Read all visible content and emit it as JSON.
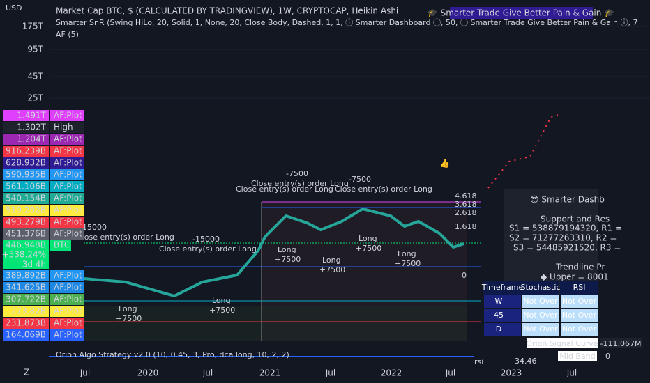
{
  "header": {
    "currency": "USD",
    "title": "Market Cap BTC, $ (CALCULATED BY TRADINGVIEW), 1W, CRYPTOCAP, Heikin Ashi",
    "indicator": "Smarter SnR (Swing HiLo, 20, Solid, 1, None, 20, Close Body, Dashed, 1, 1, ⓘ Smarter Dashboard ⓘ, 50, ⓘ Smarter Trade Give Better Pain & Gain ⓘ, 7",
    "indicator2": "AF (5)",
    "badge": "🎓 Smarter Trade Give Better Pain & Gain 🎓"
  },
  "price_scale": [
    "175T",
    "95T",
    "45T",
    "25T"
  ],
  "left_labels": [
    {
      "value": "1.491T",
      "tag": "AF:Plot",
      "color": "#e040fb"
    },
    {
      "value": "1.302T",
      "tag": "High",
      "color": "#1e222d"
    },
    {
      "value": "1.204T",
      "tag": "AF:Plot",
      "color": "#9c27b0"
    },
    {
      "value": "916.239B",
      "tag": "AF:Plot",
      "color": "#f23645"
    },
    {
      "value": "628.932B",
      "tag": "AF:Plot",
      "color": "#311b92"
    },
    {
      "value": "590.935B",
      "tag": "AF:Plot",
      "color": "#2196f3"
    },
    {
      "value": "561.106B",
      "tag": "AF:Plot",
      "color": "#00acc1"
    },
    {
      "value": "540.154B",
      "tag": "AF:Plot",
      "color": "#22ab94"
    },
    {
      "value": "519.202B",
      "tag": "AF:Plot",
      "color": "#ffeb3b"
    },
    {
      "value": "493.279B",
      "tag": "AF:Plot",
      "color": "#f23645"
    },
    {
      "value": "451.376B",
      "tag": "AF:Plot",
      "color": "#5d606b"
    }
  ],
  "btc_label": {
    "value": "446.948B",
    "tag": "BTC",
    "change": "+538.24%",
    "countdown": "3d 4h",
    "color": "#00e676"
  },
  "left_labels2": [
    {
      "value": "389.892B",
      "tag": "AF:Plot",
      "color": "#2196f3"
    },
    {
      "value": "341.625B",
      "tag": "AF:Plot",
      "color": "#1e88e5"
    },
    {
      "value": "307.722B",
      "tag": "AF:Plot",
      "color": "#4caf50"
    },
    {
      "value": "273.82B",
      "tag": "AF:Plot",
      "color": "#ffeb3b"
    },
    {
      "value": "231.873B",
      "tag": "AF:Plot",
      "color": "#f23645"
    },
    {
      "value": "164.069B",
      "tag": "AF:Plot",
      "color": "#2962ff"
    }
  ],
  "x_axis": [
    "Jul",
    "2020",
    "Jul",
    "2021",
    "Jul",
    "2022",
    "Jul",
    "2023",
    "Jul"
  ],
  "annotations": {
    "close_long": "Close entry(s) order Long",
    "neg": "-15000",
    "neg2": "-7500",
    "long": "Long",
    "plus": "+7500",
    "pos": "15000"
  },
  "fib": [
    "4.618",
    "3.618",
    "2.618",
    "1.618",
    "0"
  ],
  "right_dashboard": {
    "title": "😎 Smarter Dashb",
    "sr": "Support and Res",
    "s1": "S1 = 538879194320, R1 =",
    "s2": "S2 = 71277263310, R2 =",
    "s3": "S3 = 54485921520, R3 =",
    "trend": "Trendline Pr",
    "upper": "◆ Upper = 8001"
  },
  "table": {
    "headers": [
      "Timeframe",
      "Stochastic",
      "RSI"
    ],
    "rows": [
      [
        "W",
        "Not Over",
        "Not Over"
      ],
      [
        "45",
        "Not Over",
        "Not Over"
      ],
      [
        "D",
        "Not Over",
        "Not Over"
      ]
    ]
  },
  "footer": {
    "strategy": "Orion Algo Strategy v2.0 (10, 0.45, 3, Pro, dca long, 10, 2, 2)",
    "signal": "Orion Signal Curve",
    "signal_value": "-111.067M",
    "mid": "Mid Band",
    "mid_value": "0",
    "rsi": "rsi",
    "rsi_value": "34.46"
  }
}
